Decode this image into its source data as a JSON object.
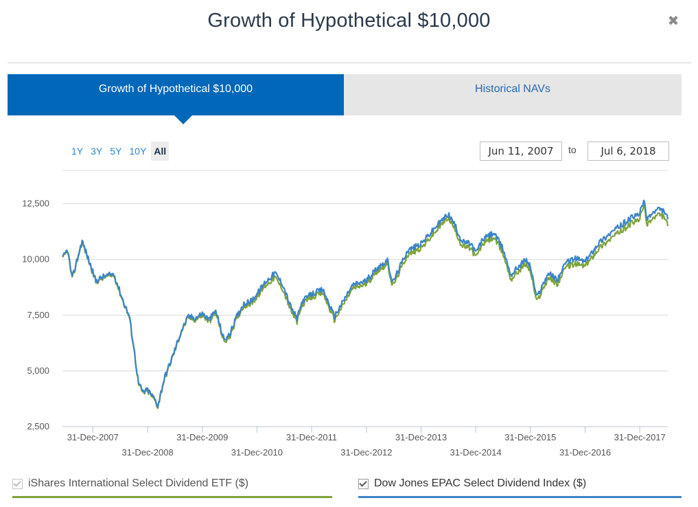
{
  "modal": {
    "title": "Growth of Hypothetical $10,000",
    "close_icon": "close-icon"
  },
  "tabs": [
    {
      "label": "Growth of Hypothetical $10,000",
      "active": true
    },
    {
      "label": "Historical NAVs",
      "active": false
    }
  ],
  "ranges": [
    {
      "label": "1Y",
      "active": false
    },
    {
      "label": "3Y",
      "active": false
    },
    {
      "label": "5Y",
      "active": false
    },
    {
      "label": "10Y",
      "active": false
    },
    {
      "label": "All",
      "active": true
    }
  ],
  "dates": {
    "from": "Jun 11, 2007",
    "to_label": "to",
    "to": "Jul 6, 2018"
  },
  "legend": [
    {
      "label": "iShares International Select Dividend ETF ($)",
      "checked": true,
      "disabled": true,
      "color": "#7ea33a"
    },
    {
      "label": "Dow Jones EPAC Select Dividend Index ($)",
      "checked": true,
      "disabled": false,
      "color": "#3c84c7"
    }
  ],
  "chart_data": {
    "type": "line",
    "y_ticks": [
      2500,
      5000,
      7500,
      10000,
      12500
    ],
    "y_tick_labels": [
      "2,500",
      "5,000",
      "7,500",
      "10,000",
      "12,500"
    ],
    "ylim": [
      2500,
      12500
    ],
    "xlim": [
      "2007-06-11",
      "2018-07-06"
    ],
    "x_ticks": [
      "2007-12-31",
      "2008-12-31",
      "2009-12-31",
      "2010-12-31",
      "2011-12-31",
      "2012-12-31",
      "2013-12-31",
      "2014-12-31",
      "2015-12-31",
      "2016-12-31",
      "2017-12-31"
    ],
    "x_tick_labels": [
      "31-Dec-2007",
      "31-Dec-2008",
      "31-Dec-2009",
      "31-Dec-2010",
      "31-Dec-2011",
      "31-Dec-2012",
      "31-Dec-2013",
      "31-Dec-2014",
      "31-Dec-2015",
      "31-Dec-2016",
      "31-Dec-2017"
    ],
    "series": [
      {
        "name": "iShares International Select Dividend ETF ($)",
        "color": "#7ea33a",
        "points": [
          [
            "2007-06-11",
            10000
          ],
          [
            "2007-07-15",
            10400
          ],
          [
            "2007-08-15",
            9100
          ],
          [
            "2007-10-20",
            10800
          ],
          [
            "2007-11-30",
            10000
          ],
          [
            "2008-01-20",
            9000
          ],
          [
            "2008-03-15",
            9200
          ],
          [
            "2008-05-20",
            9300
          ],
          [
            "2008-07-15",
            8200
          ],
          [
            "2008-08-31",
            7400
          ],
          [
            "2008-09-30",
            6000
          ],
          [
            "2008-10-31",
            4400
          ],
          [
            "2008-11-30",
            4000
          ],
          [
            "2008-12-31",
            4100
          ],
          [
            "2009-02-15",
            3700
          ],
          [
            "2009-03-09",
            3400
          ],
          [
            "2009-04-20",
            4600
          ],
          [
            "2009-06-15",
            5600
          ],
          [
            "2009-08-15",
            6800
          ],
          [
            "2009-09-30",
            7400
          ],
          [
            "2009-11-15",
            7300
          ],
          [
            "2009-12-31",
            7500
          ],
          [
            "2010-02-15",
            7200
          ],
          [
            "2010-03-31",
            7600
          ],
          [
            "2010-05-25",
            6300
          ],
          [
            "2010-06-30",
            6500
          ],
          [
            "2010-08-15",
            7300
          ],
          [
            "2010-09-30",
            7900
          ],
          [
            "2010-11-15",
            8000
          ],
          [
            "2010-12-31",
            8300
          ],
          [
            "2011-02-20",
            8800
          ],
          [
            "2011-04-30",
            9200
          ],
          [
            "2011-06-20",
            8700
          ],
          [
            "2011-08-15",
            7700
          ],
          [
            "2011-09-25",
            7200
          ],
          [
            "2011-10-31",
            8000
          ],
          [
            "2011-12-31",
            8300
          ],
          [
            "2012-03-15",
            8500
          ],
          [
            "2012-05-31",
            7300
          ],
          [
            "2012-07-31",
            8000
          ],
          [
            "2012-09-30",
            8700
          ],
          [
            "2012-12-31",
            8900
          ],
          [
            "2013-03-15",
            9500
          ],
          [
            "2013-05-20",
            9800
          ],
          [
            "2013-06-24",
            8800
          ],
          [
            "2013-09-30",
            10200
          ],
          [
            "2013-12-31",
            10500
          ],
          [
            "2014-03-31",
            11200
          ],
          [
            "2014-06-30",
            11900
          ],
          [
            "2014-08-10",
            11400
          ],
          [
            "2014-09-30",
            10600
          ],
          [
            "2014-11-30",
            10500
          ],
          [
            "2014-12-31",
            10100
          ],
          [
            "2015-02-15",
            10700
          ],
          [
            "2015-04-30",
            11000
          ],
          [
            "2015-06-30",
            10300
          ],
          [
            "2015-08-24",
            9100
          ],
          [
            "2015-09-30",
            9400
          ],
          [
            "2015-11-30",
            9800
          ],
          [
            "2015-12-31",
            9500
          ],
          [
            "2016-02-11",
            8100
          ],
          [
            "2016-04-30",
            9200
          ],
          [
            "2016-06-27",
            8900
          ],
          [
            "2016-08-31",
            9700
          ],
          [
            "2016-10-31",
            9800
          ],
          [
            "2016-12-31",
            9700
          ],
          [
            "2017-03-31",
            10500
          ],
          [
            "2017-06-30",
            11000
          ],
          [
            "2017-08-31",
            11300
          ],
          [
            "2017-10-31",
            11600
          ],
          [
            "2017-12-31",
            11800
          ],
          [
            "2018-01-26",
            12500
          ],
          [
            "2018-02-15",
            11600
          ],
          [
            "2018-04-30",
            12000
          ],
          [
            "2018-06-15",
            11900
          ],
          [
            "2018-07-06",
            11500
          ]
        ]
      },
      {
        "name": "Dow Jones EPAC Select Dividend Index ($)",
        "color": "#3c84c7",
        "points": [
          [
            "2007-06-11",
            10050
          ],
          [
            "2007-07-15",
            10450
          ],
          [
            "2007-08-15",
            9150
          ],
          [
            "2007-10-20",
            10850
          ],
          [
            "2007-11-30",
            10050
          ],
          [
            "2008-01-20",
            9050
          ],
          [
            "2008-03-15",
            9250
          ],
          [
            "2008-05-20",
            9350
          ],
          [
            "2008-07-15",
            8250
          ],
          [
            "2008-08-31",
            7450
          ],
          [
            "2008-09-30",
            6050
          ],
          [
            "2008-10-31",
            4450
          ],
          [
            "2008-11-30",
            4050
          ],
          [
            "2008-12-31",
            4150
          ],
          [
            "2009-02-15",
            3750
          ],
          [
            "2009-03-09",
            3450
          ],
          [
            "2009-04-20",
            4650
          ],
          [
            "2009-06-15",
            5650
          ],
          [
            "2009-08-15",
            6850
          ],
          [
            "2009-09-30",
            7450
          ],
          [
            "2009-11-15",
            7380
          ],
          [
            "2009-12-31",
            7580
          ],
          [
            "2010-02-15",
            7300
          ],
          [
            "2010-03-31",
            7700
          ],
          [
            "2010-05-25",
            6400
          ],
          [
            "2010-06-30",
            6600
          ],
          [
            "2010-08-15",
            7400
          ],
          [
            "2010-09-30",
            8000
          ],
          [
            "2010-11-15",
            8100
          ],
          [
            "2010-12-31",
            8450
          ],
          [
            "2011-02-20",
            8950
          ],
          [
            "2011-04-30",
            9400
          ],
          [
            "2011-06-20",
            8900
          ],
          [
            "2011-08-15",
            7850
          ],
          [
            "2011-09-25",
            7350
          ],
          [
            "2011-10-31",
            8150
          ],
          [
            "2011-12-31",
            8450
          ],
          [
            "2012-03-15",
            8650
          ],
          [
            "2012-05-31",
            7450
          ],
          [
            "2012-07-31",
            8150
          ],
          [
            "2012-09-30",
            8850
          ],
          [
            "2012-12-31",
            9050
          ],
          [
            "2013-03-15",
            9650
          ],
          [
            "2013-05-20",
            9950
          ],
          [
            "2013-06-24",
            8950
          ],
          [
            "2013-09-30",
            10400
          ],
          [
            "2013-12-31",
            10700
          ],
          [
            "2014-03-31",
            11400
          ],
          [
            "2014-06-30",
            12050
          ],
          [
            "2014-08-10",
            11600
          ],
          [
            "2014-09-30",
            10800
          ],
          [
            "2014-11-30",
            10700
          ],
          [
            "2014-12-31",
            10300
          ],
          [
            "2015-02-15",
            10900
          ],
          [
            "2015-04-30",
            11200
          ],
          [
            "2015-06-30",
            10500
          ],
          [
            "2015-08-24",
            9300
          ],
          [
            "2015-09-30",
            9600
          ],
          [
            "2015-11-30",
            10000
          ],
          [
            "2015-12-31",
            9700
          ],
          [
            "2016-02-11",
            8300
          ],
          [
            "2016-04-30",
            9400
          ],
          [
            "2016-06-27",
            9100
          ],
          [
            "2016-08-31",
            9900
          ],
          [
            "2016-10-31",
            10050
          ],
          [
            "2016-12-31",
            9900
          ],
          [
            "2017-03-31",
            10750
          ],
          [
            "2017-06-30",
            11250
          ],
          [
            "2017-08-31",
            11550
          ],
          [
            "2017-10-31",
            11850
          ],
          [
            "2017-12-31",
            12050
          ],
          [
            "2018-01-26",
            12700
          ],
          [
            "2018-02-15",
            11850
          ],
          [
            "2018-04-30",
            12250
          ],
          [
            "2018-06-15",
            12150
          ],
          [
            "2018-07-06",
            11800
          ]
        ]
      }
    ]
  }
}
